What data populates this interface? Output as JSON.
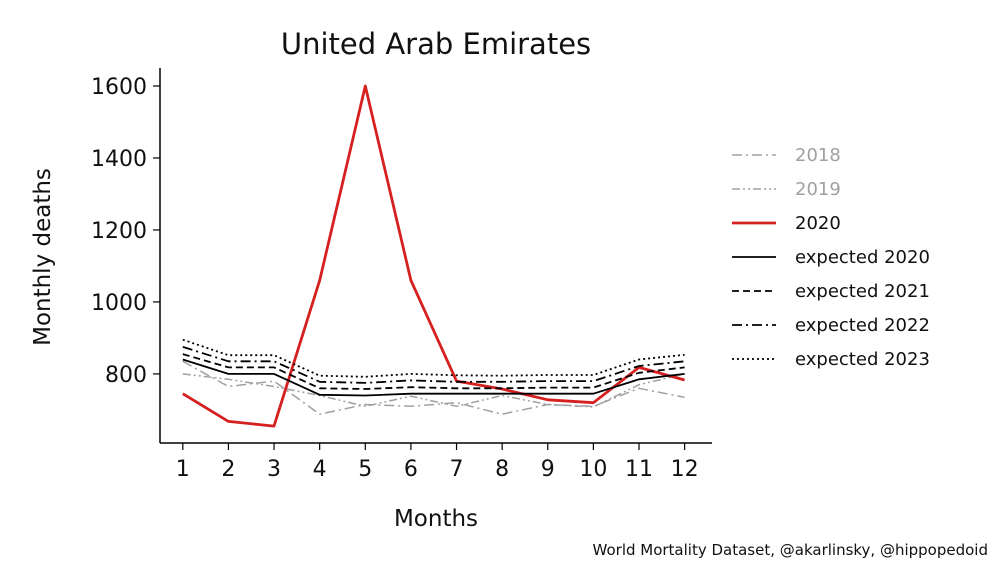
{
  "chart_data": {
    "type": "line",
    "title": "United Arab Emirates",
    "xlabel": "Months",
    "ylabel": "Monthly deaths",
    "x": [
      1,
      2,
      3,
      4,
      5,
      6,
      7,
      8,
      9,
      10,
      11,
      12
    ],
    "x_ticks": [
      "1",
      "2",
      "3",
      "4",
      "5",
      "6",
      "7",
      "8",
      "9",
      "10",
      "11",
      "12"
    ],
    "y_ticks": [
      800,
      1000,
      1200,
      1400,
      1600
    ],
    "xlim": [
      0.5,
      12.6
    ],
    "ylim": [
      608,
      1650
    ],
    "grid": false,
    "legend_position": "right",
    "series": [
      {
        "name": "2018",
        "color": "#a0a0a0",
        "dash": "dashdot",
        "width": 1.5,
        "values": [
          835,
          765,
          780,
          688,
          715,
          710,
          720,
          688,
          715,
          710,
          760,
          735
        ]
      },
      {
        "name": "2019",
        "color": "#a0a0a0",
        "dash": "dashdotdot",
        "width": 1.5,
        "values": [
          800,
          785,
          765,
          740,
          710,
          738,
          710,
          740,
          715,
          708,
          770,
          800
        ]
      },
      {
        "name": "2020",
        "color": "#d62020",
        "dash": "solid",
        "width": 2.8,
        "values": [
          745,
          668,
          655,
          1060,
          1600,
          1060,
          780,
          758,
          728,
          720,
          818,
          783
        ]
      },
      {
        "name": "expected 2020",
        "color": "#000000",
        "dash": "solid",
        "width": 1.8,
        "values": [
          840,
          800,
          800,
          742,
          740,
          745,
          745,
          745,
          745,
          745,
          785,
          800
        ]
      },
      {
        "name": "expected 2021",
        "color": "#000000",
        "dash": "dashed",
        "width": 1.8,
        "values": [
          855,
          818,
          818,
          760,
          758,
          763,
          760,
          760,
          762,
          762,
          803,
          818
        ]
      },
      {
        "name": "expected 2022",
        "color": "#000000",
        "dash": "dashdot",
        "width": 1.8,
        "values": [
          875,
          835,
          835,
          778,
          775,
          782,
          778,
          778,
          780,
          780,
          822,
          835
        ]
      },
      {
        "name": "expected 2023",
        "color": "#000000",
        "dash": "dotted",
        "width": 1.8,
        "values": [
          895,
          852,
          852,
          795,
          792,
          800,
          796,
          795,
          797,
          797,
          840,
          853
        ]
      }
    ]
  },
  "footer": {
    "credit": "World Mortality Dataset, @akarlinsky, @hippopedoid"
  }
}
